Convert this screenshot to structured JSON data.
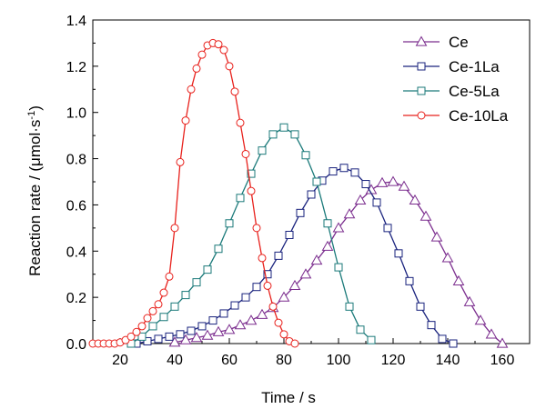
{
  "chart_data": {
    "type": "line",
    "xlabel": "Time / s",
    "ylabel_parts": [
      "Reaction rate / (",
      "μ",
      "mol·s",
      "-1",
      ")"
    ],
    "xlim": [
      10,
      170
    ],
    "ylim": [
      0,
      1.4
    ],
    "xticks": [
      20,
      40,
      60,
      80,
      100,
      120,
      140,
      160
    ],
    "yticks": [
      0.0,
      0.2,
      0.4,
      0.6,
      0.8,
      1.0,
      1.2,
      1.4
    ],
    "xtick_labels": [
      "20",
      "40",
      "60",
      "80",
      "100",
      "120",
      "140",
      "160"
    ],
    "ytick_labels": [
      "0.0",
      "0.2",
      "0.4",
      "0.6",
      "0.8",
      "1.0",
      "1.2",
      "1.4"
    ],
    "grid": false,
    "legend_position": "top-right",
    "series": [
      {
        "name": "Ce",
        "color": "#7b2d8e",
        "marker": "triangle",
        "x": [
          40,
          44,
          48,
          52,
          56,
          60,
          64,
          68,
          72,
          76,
          80,
          84,
          88,
          92,
          96,
          100,
          104,
          108,
          112,
          116,
          120,
          124,
          128,
          132,
          136,
          140,
          144,
          148,
          152,
          156,
          160
        ],
        "y": [
          0.005,
          0.015,
          0.025,
          0.035,
          0.05,
          0.06,
          0.08,
          0.1,
          0.125,
          0.155,
          0.2,
          0.25,
          0.3,
          0.36,
          0.42,
          0.5,
          0.56,
          0.62,
          0.665,
          0.695,
          0.7,
          0.68,
          0.62,
          0.55,
          0.46,
          0.37,
          0.27,
          0.18,
          0.1,
          0.04,
          0.0
        ]
      },
      {
        "name": "Ce-1La",
        "color": "#1a237e",
        "marker": "square",
        "x": [
          26,
          30,
          34,
          38,
          42,
          46,
          50,
          54,
          58,
          62,
          66,
          70,
          74,
          78,
          82,
          86,
          90,
          94,
          98,
          102,
          106,
          110,
          114,
          118,
          122,
          126,
          130,
          134,
          138,
          142
        ],
        "y": [
          0.0,
          0.01,
          0.02,
          0.03,
          0.04,
          0.055,
          0.075,
          0.1,
          0.13,
          0.165,
          0.2,
          0.245,
          0.3,
          0.38,
          0.47,
          0.565,
          0.645,
          0.705,
          0.745,
          0.76,
          0.74,
          0.69,
          0.61,
          0.5,
          0.39,
          0.27,
          0.16,
          0.08,
          0.02,
          0.0
        ]
      },
      {
        "name": "Ce-5La",
        "color": "#1b7a7a",
        "marker": "square",
        "x": [
          24,
          28,
          32,
          36,
          40,
          44,
          48,
          52,
          56,
          60,
          64,
          68,
          72,
          76,
          80,
          84,
          88,
          92,
          96,
          100,
          104,
          108,
          112
        ],
        "y": [
          0.0,
          0.03,
          0.075,
          0.115,
          0.16,
          0.21,
          0.265,
          0.32,
          0.41,
          0.52,
          0.63,
          0.735,
          0.835,
          0.905,
          0.935,
          0.905,
          0.815,
          0.7,
          0.52,
          0.33,
          0.16,
          0.06,
          0.015
        ]
      },
      {
        "name": "Ce-10La",
        "color": "#e8211c",
        "marker": "circle",
        "x": [
          10,
          12,
          14,
          16,
          18,
          20,
          22,
          24,
          26,
          28,
          30,
          32,
          34,
          36,
          38,
          40,
          42,
          44,
          46,
          48,
          50,
          52,
          54,
          56,
          58,
          60,
          62,
          64,
          66,
          68,
          70,
          72,
          74,
          76,
          78,
          80,
          82,
          84
        ],
        "y": [
          0.0,
          0.0,
          0.0,
          0.0,
          0.0,
          0.005,
          0.015,
          0.03,
          0.05,
          0.075,
          0.11,
          0.14,
          0.17,
          0.22,
          0.29,
          0.5,
          0.785,
          0.965,
          1.1,
          1.19,
          1.25,
          1.29,
          1.3,
          1.295,
          1.27,
          1.2,
          1.09,
          0.955,
          0.82,
          0.66,
          0.5,
          0.37,
          0.25,
          0.16,
          0.09,
          0.04,
          0.01,
          0.0
        ]
      }
    ]
  }
}
